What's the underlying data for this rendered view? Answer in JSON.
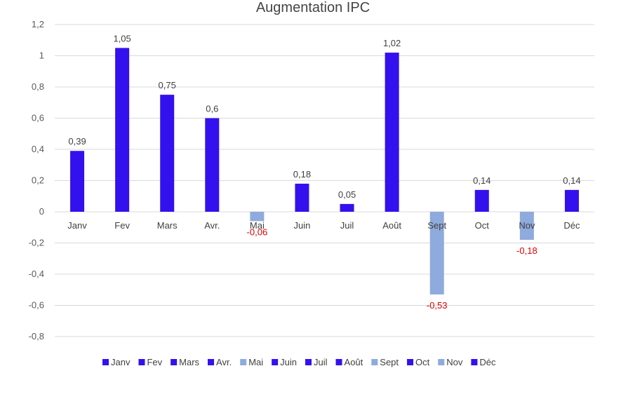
{
  "chart_data": {
    "type": "bar",
    "title": "Augmentation IPC",
    "xlabel": "",
    "ylabel": "",
    "ylim": [
      -0.8,
      1.2
    ],
    "yticks": [
      1.2,
      1,
      0.8,
      0.6,
      0.4,
      0.2,
      0,
      -0.2,
      -0.4,
      -0.6,
      -0.8
    ],
    "ytick_labels": [
      "1,2",
      "1",
      "0,8",
      "0,6",
      "0,4",
      "0,2",
      "0",
      "-0,2",
      "-0,4",
      "-0,6",
      "-0,8"
    ],
    "grid": true,
    "legend_position": "bottom",
    "categories": [
      "Janv",
      "Fev",
      "Mars",
      "Avr.",
      "Mai",
      "Juin",
      "Juil",
      "Août",
      "Sept",
      "Oct",
      "Nov",
      "Déc"
    ],
    "values": [
      0.39,
      1.05,
      0.75,
      0.6,
      -0.06,
      0.18,
      0.05,
      1.02,
      -0.53,
      0.14,
      -0.18,
      0.14
    ],
    "value_labels": [
      "0,39",
      "1,05",
      "0,75",
      "0,6",
      "-0,06",
      "0,18",
      "0,05",
      "1,02",
      "-0,53",
      "0,14",
      "-0,18",
      "0,14"
    ],
    "colors": {
      "positive": "#3311ee",
      "negative": "#8faadc",
      "positive_label": "#404040",
      "negative_label": "#e00000"
    }
  }
}
